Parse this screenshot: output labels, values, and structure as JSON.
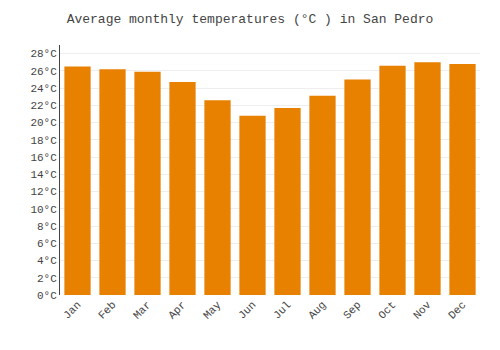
{
  "chart_data": {
    "type": "bar",
    "title": "Average monthly temperatures (°C ) in San Pedro",
    "categories": [
      "Jan",
      "Feb",
      "Mar",
      "Apr",
      "May",
      "Jun",
      "Jul",
      "Aug",
      "Sep",
      "Oct",
      "Nov",
      "Dec"
    ],
    "values": [
      26.5,
      26.2,
      25.9,
      24.7,
      22.6,
      20.8,
      21.7,
      23.1,
      25.0,
      26.6,
      27.0,
      26.8
    ],
    "color": "#E88000",
    "ylim": [
      0,
      29
    ],
    "yticks": [
      {
        "value": 0,
        "label": "0°C"
      },
      {
        "value": 2,
        "label": "2°C"
      },
      {
        "value": 4,
        "label": "4°C"
      },
      {
        "value": 6,
        "label": "6°C"
      },
      {
        "value": 8,
        "label": "8°C"
      },
      {
        "value": 10,
        "label": "10°C"
      },
      {
        "value": 12,
        "label": "12°C"
      },
      {
        "value": 14,
        "label": "14°C"
      },
      {
        "value": 16,
        "label": "16°C"
      },
      {
        "value": 18,
        "label": "18°C"
      },
      {
        "value": 20,
        "label": "20°C"
      },
      {
        "value": 22,
        "label": "22°C"
      },
      {
        "value": 24,
        "label": "24°C"
      },
      {
        "value": 26,
        "label": "26°C"
      },
      {
        "value": 28,
        "label": "28°C"
      }
    ],
    "grid": true
  }
}
